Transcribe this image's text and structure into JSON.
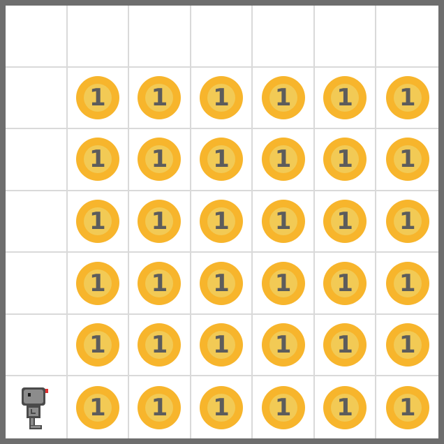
{
  "grid": {
    "rows": 7,
    "cols": 7,
    "cells": [
      [
        "",
        "",
        "",
        "",
        "",
        "",
        ""
      ],
      [
        "",
        "1",
        "1",
        "1",
        "1",
        "1",
        "1"
      ],
      [
        "",
        "1",
        "1",
        "1",
        "1",
        "1",
        "1"
      ],
      [
        "",
        "1",
        "1",
        "1",
        "1",
        "1",
        "1"
      ],
      [
        "",
        "1",
        "1",
        "1",
        "1",
        "1",
        "1"
      ],
      [
        "",
        "1",
        "1",
        "1",
        "1",
        "1",
        "1"
      ],
      [
        "robot",
        "1",
        "1",
        "1",
        "1",
        "1",
        "1"
      ]
    ]
  },
  "agent": {
    "icon": "robot-icon",
    "row": 6,
    "col": 0
  },
  "colors": {
    "coin_outer": "#f7b52c",
    "coin_inner": "#f2ca55",
    "coin_text": "#5c5c5c",
    "grid_line": "#d9d9d9",
    "frame": "#6e6e6e"
  }
}
